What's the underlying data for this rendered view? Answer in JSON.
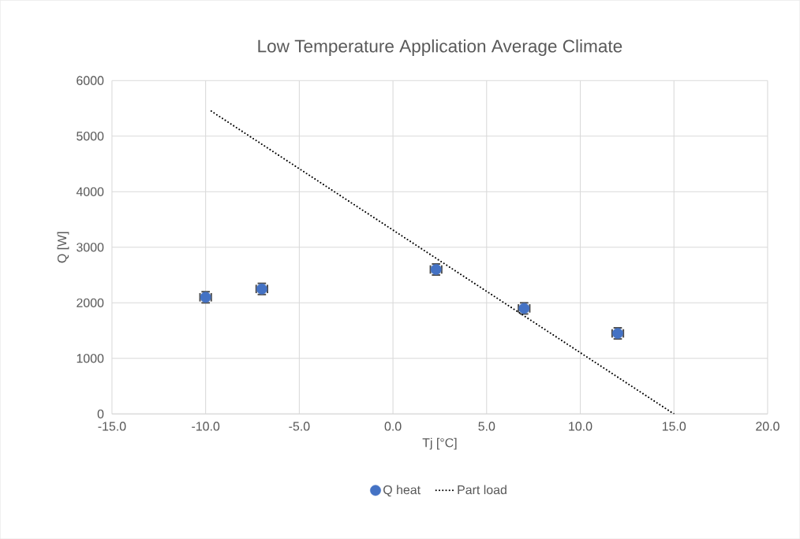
{
  "chart_data": {
    "type": "scatter",
    "title": "Low Temperature Application Average Climate",
    "xlabel": "Tj [°C]",
    "ylabel": "Q [W]",
    "series": [
      {
        "name": "Q heat",
        "color": "#4472c4",
        "marker": "circle",
        "x": [
          -10,
          -7,
          2.3,
          7,
          12
        ],
        "values": [
          2100,
          2250,
          2600,
          1900,
          1450
        ],
        "errors": [
          100,
          100,
          100,
          100,
          100
        ],
        "xerrors": [
          0.3,
          0.3,
          0.3,
          0.3,
          0.3
        ]
      },
      {
        "name": "Part load",
        "type": "line",
        "color": "#000000",
        "marker": "none",
        "line_style": "dotted",
        "x": [
          -9.7,
          15
        ],
        "values": [
          5450,
          0
        ]
      }
    ],
    "xlim": [
      -15,
      20
    ],
    "ylim": [
      0,
      6000
    ],
    "xticks": [
      {
        "value": -15,
        "label": "-15.0"
      },
      {
        "value": -10,
        "label": "-10.0"
      },
      {
        "value": -5,
        "label": "-5.0"
      },
      {
        "value": 0,
        "label": "0.0"
      },
      {
        "value": 5,
        "label": "5.0"
      },
      {
        "value": 10,
        "label": "10.0"
      },
      {
        "value": 15,
        "label": "15.0"
      },
      {
        "value": 20,
        "label": "20.0"
      }
    ],
    "yticks": [
      0,
      1000,
      2000,
      3000,
      4000,
      5000,
      6000
    ],
    "grid": true,
    "legend": "bottom"
  }
}
